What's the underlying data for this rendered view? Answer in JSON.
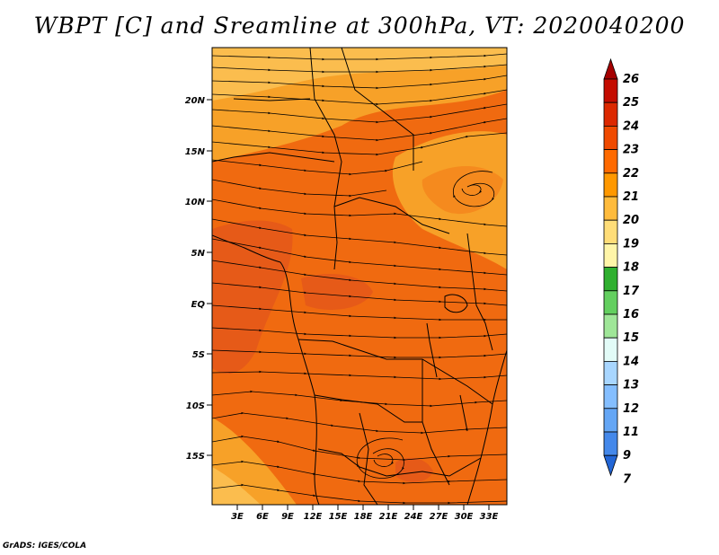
{
  "title": "WBPT [C] and Sreamline at 300hPa, VT: 2020040200",
  "credit": "GrADS: IGES/COLA",
  "map": {
    "lat_labels": [
      "20N",
      "15N",
      "10N",
      "5N",
      "EQ",
      "5S",
      "10S",
      "15S"
    ],
    "lon_labels": [
      "3E",
      "6E",
      "9E",
      "12E",
      "15E",
      "18E",
      "21E",
      "24E",
      "27E",
      "30E",
      "33E"
    ]
  },
  "colorbar": {
    "levels": [
      "26",
      "25",
      "24",
      "23",
      "22",
      "21",
      "20",
      "19",
      "18",
      "17",
      "16",
      "15",
      "14",
      "13",
      "12",
      "11",
      "9",
      "7"
    ],
    "colors": [
      "#a50000",
      "#c40c00",
      "#dc2800",
      "#f04a00",
      "#ff6a00",
      "#ff9800",
      "#ffbb3c",
      "#ffdd78",
      "#fff5a8",
      "#2fb02f",
      "#63cf5f",
      "#9fe698",
      "#e2fbf7",
      "#a8d6ff",
      "#84beff",
      "#64a6f5",
      "#4488ea",
      "#2266d6"
    ]
  },
  "colors": {
    "field_main": "#f06a10",
    "field_warm": "#e65a18",
    "field_cool": "#f7a128",
    "field_light": "#fbbd4e",
    "line": "#000000"
  }
}
